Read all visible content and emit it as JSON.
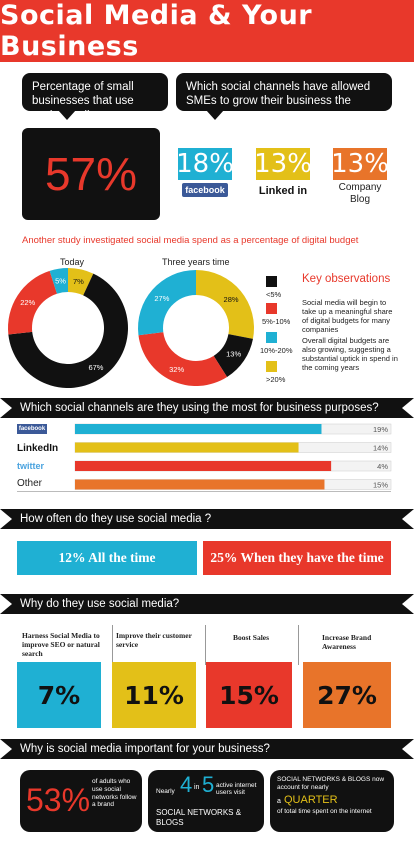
{
  "title": "Social Media & Your Business",
  "bubble_left": "Percentage of small businesses that use social media...",
  "bubble_right": "Which social channels have allowed SMEs to grow their business the most?...",
  "big_stat": "57%",
  "channels_grow": [
    {
      "pct": "18%",
      "label": "facebook",
      "color": "#1fb0d3"
    },
    {
      "pct": "13%",
      "label": "Linked in",
      "color": "#e3c018"
    },
    {
      "pct": "13%",
      "label": "Company Blog",
      "color": "#e8742a"
    }
  ],
  "spend_heading": "Another study investigated social media spend as a percentage of digital budget",
  "donut_titles": {
    "today": "Today",
    "three": "Three years time"
  },
  "legend": [
    {
      "label": "<5%",
      "color": "#111111"
    },
    {
      "label": "5%-10%",
      "color": "#e8382b"
    },
    {
      "label": "10%-20%",
      "color": "#1fb0d3"
    },
    {
      "label": ">20%",
      "color": "#e3c018"
    }
  ],
  "key_obs_title": "Key observations",
  "key_obs_1": "Social media will begin to take up a meaningful share of digital budgets for many companies",
  "key_obs_2": "Overall digital budgets are also growing, suggesting a substantial uptick in spend in the coming years",
  "chart_data": [
    {
      "type": "pie",
      "title": "Today",
      "categories": [
        "<5%",
        "5%-10%",
        "10%-20%",
        ">20%"
      ],
      "values": [
        67,
        22,
        5,
        7
      ],
      "colors": [
        "#111111",
        "#e8382b",
        "#1fb0d3",
        "#e3c018"
      ],
      "labels": [
        "67%",
        "22%",
        "5%",
        "7%"
      ]
    },
    {
      "type": "pie",
      "title": "Three years time",
      "categories": [
        "<5%",
        "5%-10%",
        "10%-20%",
        ">20%"
      ],
      "values": [
        13,
        32,
        27,
        28
      ],
      "colors": [
        "#111111",
        "#e8382b",
        "#1fb0d3",
        "#e3c018"
      ],
      "labels": [
        "13%",
        "32%",
        "27%",
        "28%"
      ]
    },
    {
      "type": "bar",
      "title": "Which social channels are they using the most for business purposes?",
      "categories": [
        "facebook",
        "LinkedIn",
        "twitter",
        "Other"
      ],
      "values": [
        19,
        14,
        4,
        15
      ],
      "labels": [
        "19%",
        "14%",
        "4%",
        "15%"
      ],
      "colors": [
        "#1fb0d3",
        "#e3c018",
        "#e8382b",
        "#e8742a"
      ]
    }
  ],
  "ribbon_usage": "Which social channels are they using the most for business purposes?",
  "bar_labels": [
    "facebook",
    "LinkedIn",
    "twitter",
    "Other"
  ],
  "ribbon_often": "How often do they use social media ?",
  "freq_left": "12% All the time",
  "freq_right": "25% When they have the time",
  "ribbon_why": "Why do they use social media?",
  "reasons": [
    {
      "text": "Harness Social Media to improve SEO or natural search",
      "pct": "7%",
      "color": "#1fb0d3"
    },
    {
      "text": "Improve their customer service",
      "pct": "11%",
      "color": "#e3c018"
    },
    {
      "text": "Boost Sales",
      "pct": "15%",
      "color": "#e8382b"
    },
    {
      "text": "Increase Brand Awareness",
      "pct": "27%",
      "color": "#e8742a"
    }
  ],
  "ribbon_important": "Why is social media important for your business?",
  "imp1_big": "53%",
  "imp1_text": "of adults who use social networks follow a brand",
  "imp2_pre": "Nearly",
  "imp2_big": "4",
  "imp2_in": "in",
  "imp2_big2": "5",
  "imp2_text": "active internet users visit",
  "imp2_tail": "SOCIAL NETWORKS & BLOGS",
  "imp3_text1": "SOCIAL NETWORKS & BLOGS now account for nearly",
  "imp3_a": "a",
  "imp3_big": "QUARTER",
  "imp3_text2": "of total time spent on the internet"
}
